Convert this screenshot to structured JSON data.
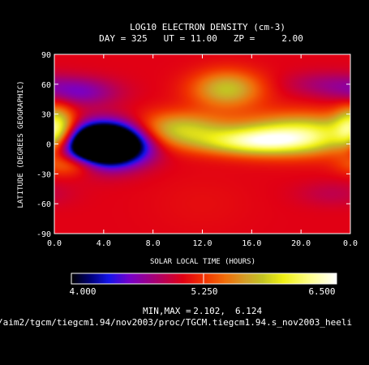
{
  "chart_data": {
    "type": "heatmap",
    "title": "LOG10 ELECTRON DENSITY (cm-3)",
    "subtitle": "DAY = 325   UT = 11.00   ZP =     2.00",
    "xlabel": "SOLAR LOCAL TIME (HOURS)",
    "ylabel": "LATITUDE (DEGREES GEOGRAPHIC)",
    "xlim": [
      0,
      24
    ],
    "ylim": [
      -90,
      90
    ],
    "x_ticks": [
      "0.0",
      "4.0",
      "8.0",
      "12.0",
      "16.0",
      "20.0",
      "0.0"
    ],
    "y_ticks": [
      "90",
      "60",
      "30",
      "0",
      "-30",
      "-60",
      "-90"
    ],
    "colorbar": {
      "min": 4.0,
      "max": 6.5,
      "labels": [
        "4.000",
        "5.250",
        "6.500"
      ]
    },
    "minmax_label": "MIN,MAX =",
    "min_value": "2.102,",
    "max_value": "6.124",
    "features": [
      {
        "x": 4.0,
        "y": 0,
        "value": 2.1,
        "note": "minimum"
      },
      {
        "x": 2.0,
        "y": 52,
        "value": 4.6
      },
      {
        "x": 22.0,
        "y": 60,
        "value": 4.8
      },
      {
        "x": 22.5,
        "y": -50,
        "value": 4.9
      },
      {
        "x": 0.2,
        "y": 15,
        "value": 6.0
      },
      {
        "x": 14.0,
        "y": 55,
        "value": 5.8
      },
      {
        "x": 20.0,
        "y": 10,
        "value": 6.1,
        "note": "maximum"
      },
      {
        "x": 10.0,
        "y": 15,
        "value": 5.8
      },
      {
        "x": 16.0,
        "y": 2,
        "value": 5.9
      },
      {
        "x": 1.5,
        "y": -20,
        "value": 5.6
      },
      {
        "x": 12.0,
        "y": -60,
        "value": 5.1
      }
    ]
  },
  "file_path": "/aim2/tgcm/tiegcm1.94/nov2003/proc/TGCM.tiegcm1.94.s_nov2003_heeli"
}
